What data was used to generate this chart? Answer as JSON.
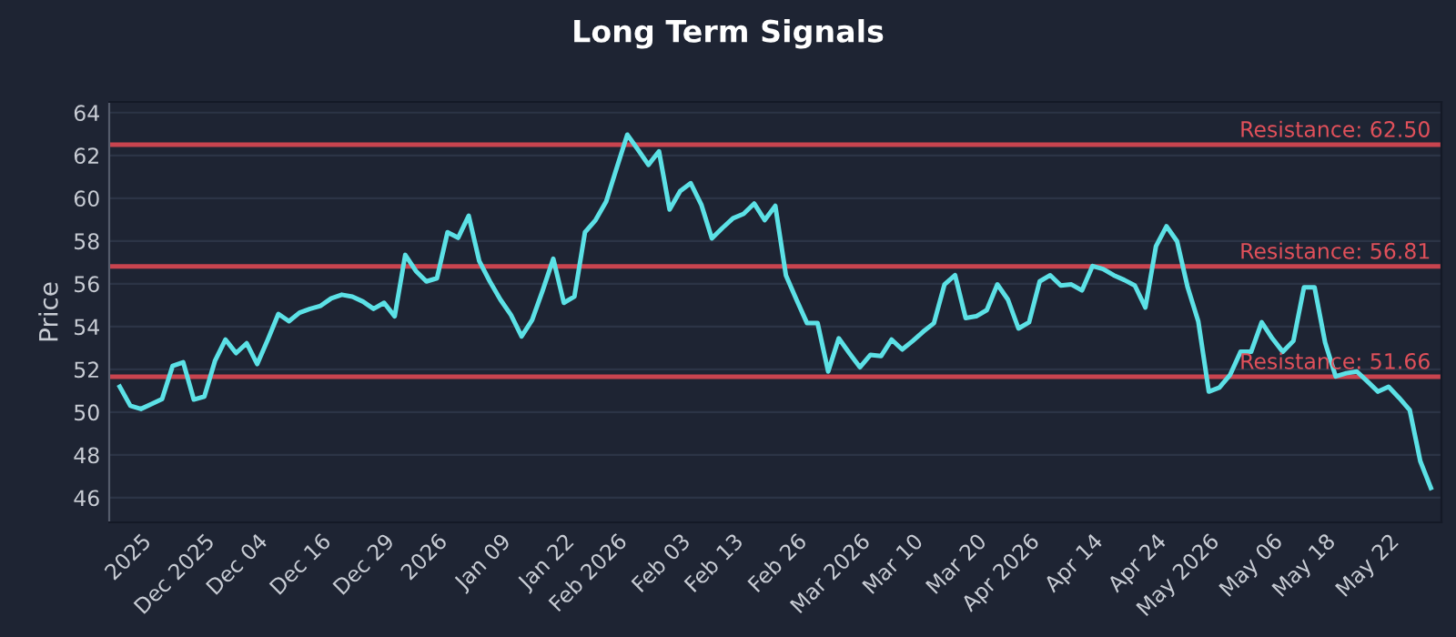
{
  "chart_data": {
    "type": "line",
    "title": "Long Term Signals",
    "ylabel": "Price",
    "categories": [
      null,
      null,
      "2025",
      null,
      null,
      null,
      null,
      null,
      "Dec 2025",
      null,
      null,
      null,
      null,
      "Dec 04",
      null,
      null,
      null,
      null,
      null,
      "Dec 16",
      null,
      null,
      null,
      null,
      null,
      "Dec 29",
      null,
      null,
      null,
      null,
      "2026",
      null,
      null,
      null,
      null,
      null,
      "Jan 09",
      null,
      null,
      null,
      null,
      null,
      "Jan 22",
      null,
      null,
      null,
      null,
      "Feb 2026",
      null,
      null,
      null,
      null,
      null,
      "Feb 03",
      null,
      null,
      null,
      null,
      "Feb 13",
      null,
      null,
      null,
      null,
      null,
      "Feb 26",
      null,
      null,
      null,
      null,
      null,
      "Mar 2026",
      null,
      null,
      null,
      null,
      "Mar 10",
      null,
      null,
      null,
      null,
      null,
      "Mar 20",
      null,
      null,
      null,
      null,
      "Apr 2026",
      null,
      null,
      null,
      null,
      null,
      "Apr 14",
      null,
      null,
      null,
      null,
      null,
      "Apr 24",
      null,
      null,
      null,
      null,
      "May 2026",
      null,
      null,
      null,
      null,
      null,
      "May 06",
      null,
      null,
      null,
      null,
      "May 18",
      null,
      null,
      null,
      null,
      null,
      "May 22",
      null,
      null,
      null,
      null
    ],
    "series": [
      {
        "color": "#5ce1e6",
        "values": [
          51.19,
          50.3,
          50.15,
          50.38,
          50.61,
          52.16,
          52.33,
          50.59,
          50.73,
          52.39,
          53.39,
          52.76,
          53.22,
          52.25,
          53.39,
          54.59,
          54.25,
          54.65,
          54.83,
          54.97,
          55.32,
          55.49,
          55.4,
          55.17,
          54.83,
          55.11,
          54.48,
          57.35,
          56.6,
          56.11,
          56.26,
          58.41,
          58.15,
          59.18,
          57.06,
          56.11,
          55.26,
          54.54,
          53.54,
          54.31,
          55.69,
          57.17,
          55.11,
          55.4,
          58.41,
          58.98,
          59.84,
          61.42,
          62.97,
          62.28,
          61.56,
          62.19,
          59.47,
          60.33,
          60.7,
          59.7,
          58.12,
          58.61,
          59.06,
          59.27,
          59.75,
          58.98,
          59.64,
          56.4,
          55.26,
          54.16,
          54.16,
          51.9,
          53.45,
          52.76,
          52.1,
          52.68,
          52.62,
          53.39,
          52.93,
          53.33,
          53.77,
          54.16,
          55.97,
          56.4,
          54.4,
          54.48,
          54.77,
          55.97,
          55.26,
          53.91,
          54.2,
          56.11,
          56.4,
          55.92,
          55.97,
          55.69,
          56.83,
          56.69,
          56.4,
          56.18,
          55.92,
          54.89,
          57.75,
          58.69,
          57.98,
          55.83,
          54.25,
          50.96,
          51.15,
          51.73,
          52.82,
          52.82,
          54.2,
          53.45,
          52.82,
          53.33,
          55.83,
          55.83,
          53.25,
          51.67,
          51.82,
          51.9,
          51.44,
          50.96,
          51.19,
          50.67,
          50.1,
          47.71,
          46.46
        ]
      }
    ],
    "ylim": [
      44.85,
      64.5
    ],
    "yticks": [
      46,
      48,
      50,
      52,
      54,
      56,
      58,
      60,
      62,
      64
    ],
    "grid": "y",
    "legend": false,
    "marker": "none",
    "line_style": "solid",
    "ref_lines": [
      {
        "axis": "y",
        "value": 62.5,
        "label": "Resistance: 62.50",
        "color": "#c9444f"
      },
      {
        "axis": "y",
        "value": 56.81,
        "label": "Resistance: 56.81",
        "color": "#c9444f"
      },
      {
        "axis": "y",
        "value": 51.66,
        "label": "Resistance: 51.66",
        "color": "#c9444f"
      }
    ]
  }
}
